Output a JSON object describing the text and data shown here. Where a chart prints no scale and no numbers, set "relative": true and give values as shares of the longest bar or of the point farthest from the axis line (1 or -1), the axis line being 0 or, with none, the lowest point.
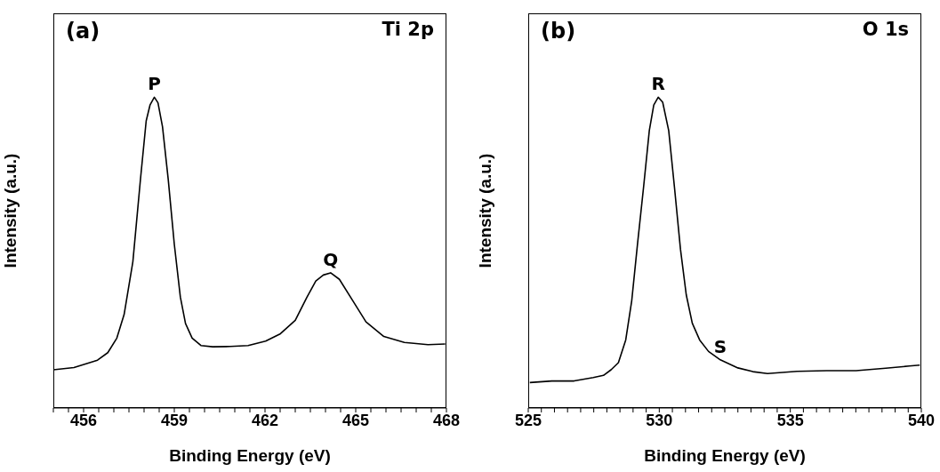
{
  "chart_data": [
    {
      "type": "line",
      "relative": true,
      "xlabel": "Binding Energy (eV)",
      "ylabel": "Intensity (a.u.)",
      "xlim": [
        455,
        468
      ],
      "xticks": [
        {
          "value": 455,
          "label": null
        },
        {
          "value": 455.5,
          "label": null
        },
        456,
        {
          "value": 456.5,
          "label": null
        },
        {
          "value": 457,
          "label": null
        },
        {
          "value": 457.5,
          "label": null
        },
        {
          "value": 458,
          "label": null
        },
        {
          "value": 458.5,
          "label": null
        },
        459,
        {
          "value": 459.5,
          "label": null
        },
        {
          "value": 460,
          "label": null
        },
        {
          "value": 460.5,
          "label": null
        },
        {
          "value": 461,
          "label": null
        },
        {
          "value": 461.5,
          "label": null
        },
        462,
        {
          "value": 462.5,
          "label": null
        },
        {
          "value": 463,
          "label": null
        },
        {
          "value": 463.5,
          "label": null
        },
        {
          "value": 464,
          "label": null
        },
        {
          "value": 464.5,
          "label": null
        },
        465,
        {
          "value": 465.5,
          "label": null
        },
        {
          "value": 466,
          "label": null
        },
        {
          "value": 466.5,
          "label": null
        },
        {
          "value": 467,
          "label": null
        },
        {
          "value": 467.5,
          "label": null
        },
        468
      ],
      "marker": "none",
      "legend": false,
      "grid": false,
      "annotations": [
        "(a)",
        "Ti 2p",
        {
          "text": "P",
          "x": 458.34,
          "y": 1.0
        },
        {
          "text": "Q",
          "x": 464.17,
          "y": 0.435
        }
      ],
      "x": [
        455.0,
        455.68,
        456.46,
        456.8,
        457.1,
        457.34,
        457.63,
        457.88,
        458.07,
        458.2,
        458.34,
        458.46,
        458.61,
        458.8,
        459.0,
        459.2,
        459.37,
        459.59,
        459.88,
        460.27,
        460.85,
        461.44,
        462.02,
        462.51,
        463.0,
        463.39,
        463.68,
        463.93,
        464.17,
        464.46,
        464.95,
        465.34,
        465.93,
        466.61,
        467.39,
        467.96
      ],
      "series": [
        {
          "color": "#000000",
          "values": [
            0.123,
            0.13,
            0.154,
            0.178,
            0.225,
            0.301,
            0.471,
            0.735,
            0.924,
            0.976,
            1.0,
            0.982,
            0.905,
            0.735,
            0.527,
            0.357,
            0.272,
            0.225,
            0.201,
            0.197,
            0.198,
            0.201,
            0.215,
            0.239,
            0.282,
            0.357,
            0.409,
            0.428,
            0.435,
            0.414,
            0.338,
            0.277,
            0.23,
            0.211,
            0.204,
            0.206
          ]
        }
      ]
    },
    {
      "type": "line",
      "relative": true,
      "xlabel": "Binding Energy (eV)",
      "ylabel": "Intensity (a.u.)",
      "xlim": [
        525,
        540
      ],
      "xticks": [
        525,
        {
          "value": 525.5,
          "label": null
        },
        {
          "value": 526,
          "label": null
        },
        {
          "value": 526.5,
          "label": null
        },
        {
          "value": 527,
          "label": null
        },
        {
          "value": 527.5,
          "label": null
        },
        {
          "value": 528,
          "label": null
        },
        {
          "value": 528.5,
          "label": null
        },
        {
          "value": 529,
          "label": null
        },
        {
          "value": 529.5,
          "label": null
        },
        530,
        {
          "value": 530.5,
          "label": null
        },
        {
          "value": 531,
          "label": null
        },
        {
          "value": 531.5,
          "label": null
        },
        {
          "value": 532,
          "label": null
        },
        {
          "value": 532.5,
          "label": null
        },
        {
          "value": 533,
          "label": null
        },
        {
          "value": 533.5,
          "label": null
        },
        {
          "value": 534,
          "label": null
        },
        {
          "value": 534.5,
          "label": null
        },
        535,
        {
          "value": 535.5,
          "label": null
        },
        {
          "value": 536,
          "label": null
        },
        {
          "value": 536.5,
          "label": null
        },
        {
          "value": 537,
          "label": null
        },
        {
          "value": 537.5,
          "label": null
        },
        {
          "value": 538,
          "label": null
        },
        {
          "value": 538.5,
          "label": null
        },
        {
          "value": 539,
          "label": null
        },
        {
          "value": 539.5,
          "label": null
        },
        540
      ],
      "marker": "none",
      "legend": false,
      "grid": false,
      "annotations": [
        "(b)",
        "O 1s",
        {
          "text": "R",
          "x": 529.96,
          "y": 1.0
        },
        {
          "text": "S",
          "x": 532.33,
          "y": 0.155
        }
      ],
      "x": [
        525.06,
        525.9,
        526.75,
        527.48,
        527.87,
        528.16,
        528.44,
        528.72,
        528.95,
        529.17,
        529.4,
        529.62,
        529.79,
        529.96,
        530.13,
        530.36,
        530.58,
        530.81,
        531.03,
        531.26,
        531.54,
        531.88,
        532.33,
        533.0,
        533.57,
        534.13,
        535.26,
        536.39,
        537.51,
        538.64,
        539.54,
        539.94
      ],
      "series": [
        {
          "color": "#000000",
          "values": [
            0.082,
            0.087,
            0.087,
            0.098,
            0.105,
            0.123,
            0.146,
            0.219,
            0.346,
            0.528,
            0.71,
            0.893,
            0.975,
            1.0,
            0.984,
            0.893,
            0.71,
            0.51,
            0.364,
            0.273,
            0.219,
            0.182,
            0.155,
            0.129,
            0.117,
            0.111,
            0.118,
            0.12,
            0.12,
            0.128,
            0.135,
            0.138
          ]
        }
      ]
    }
  ]
}
